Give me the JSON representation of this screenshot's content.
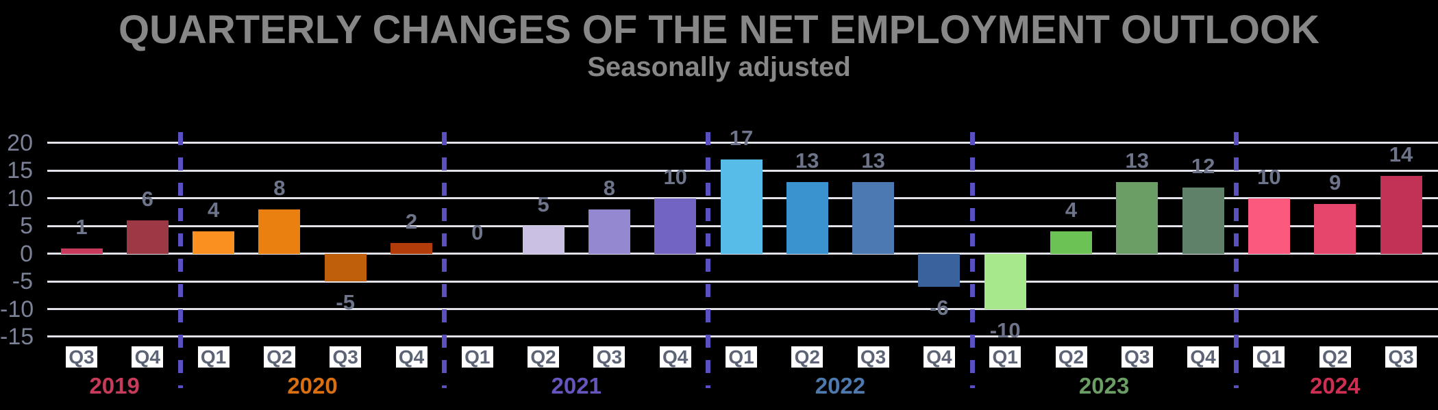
{
  "title": "QUARTERLY CHANGES OF THE NET EMPLOYMENT OUTLOOK",
  "subtitle": "Seasonally adjusted",
  "colors": {
    "background": "#000000",
    "title_text": "#878787",
    "subtitle_text": "#878787",
    "gridline": "#e2e2ea",
    "axis_tick_text": "#7b8196",
    "value_label_text": "#6e7489",
    "year_separator": "#5b50c2",
    "quarter_box_bg": "#ffffff",
    "quarter_box_text": "#5c6375"
  },
  "chart_data": {
    "type": "bar",
    "title": "QUARTERLY CHANGES OF THE NET EMPLOYMENT OUTLOOK",
    "subtitle": "Seasonally adjusted",
    "ylabel": "",
    "xlabel": "",
    "ylim": [
      -15,
      20
    ],
    "yticks": [
      20,
      15,
      10,
      5,
      0,
      -5,
      -10,
      -15
    ],
    "grid": true,
    "value_labels_shown": true,
    "groups": [
      {
        "year": "2019",
        "year_label_color": "#c63a5a",
        "quarters": [
          {
            "label": "Q3",
            "value": 1,
            "color": "#c73a5b"
          },
          {
            "label": "Q4",
            "value": 6,
            "color": "#9d3945"
          }
        ]
      },
      {
        "year": "2020",
        "year_label_color": "#d96f10",
        "quarters": [
          {
            "label": "Q1",
            "value": 4,
            "color": "#f9901f"
          },
          {
            "label": "Q2",
            "value": 8,
            "color": "#e9800f"
          },
          {
            "label": "Q3",
            "value": -5,
            "color": "#c05f09"
          },
          {
            "label": "Q4",
            "value": 2,
            "color": "#b33d0a"
          }
        ]
      },
      {
        "year": "2021",
        "year_label_color": "#6456bc",
        "quarters": [
          {
            "label": "Q1",
            "value": 0,
            "color": "#cfc7e8"
          },
          {
            "label": "Q2",
            "value": 5,
            "color": "#c9c0e4"
          },
          {
            "label": "Q3",
            "value": 8,
            "color": "#9489d0"
          },
          {
            "label": "Q4",
            "value": 10,
            "color": "#7164c2"
          }
        ]
      },
      {
        "year": "2022",
        "year_label_color": "#4d79ad",
        "quarters": [
          {
            "label": "Q1",
            "value": 17,
            "color": "#58bce8"
          },
          {
            "label": "Q2",
            "value": 13,
            "color": "#3a93cf"
          },
          {
            "label": "Q3",
            "value": 13,
            "color": "#4d79b2"
          },
          {
            "label": "Q4",
            "value": -6,
            "color": "#3a639e"
          }
        ]
      },
      {
        "year": "2023",
        "year_label_color": "#6b9e64",
        "quarters": [
          {
            "label": "Q1",
            "value": -10,
            "color": "#a7e88c"
          },
          {
            "label": "Q2",
            "value": 4,
            "color": "#6dc256"
          },
          {
            "label": "Q3",
            "value": 13,
            "color": "#6b9e64"
          },
          {
            "label": "Q4",
            "value": 12,
            "color": "#5f8069"
          }
        ]
      },
      {
        "year": "2024",
        "year_label_color": "#cc2f52",
        "quarters": [
          {
            "label": "Q1",
            "value": 10,
            "color": "#fb5a7e"
          },
          {
            "label": "Q2",
            "value": 9,
            "color": "#e4476b"
          },
          {
            "label": "Q3",
            "value": 14,
            "color": "#c23156"
          }
        ]
      }
    ]
  }
}
